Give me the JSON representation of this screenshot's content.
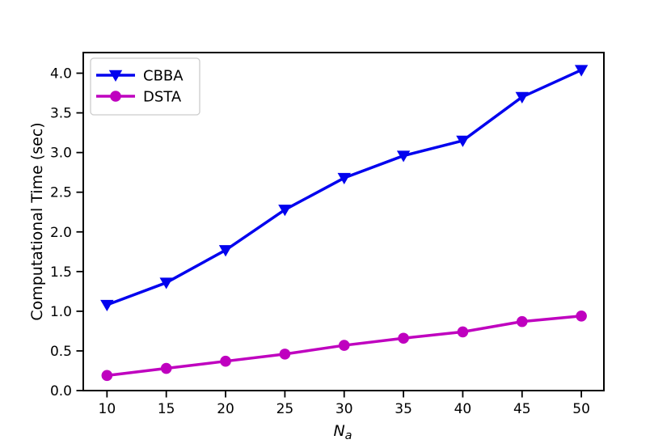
{
  "chart_data": {
    "type": "line",
    "title": "",
    "xlabel_main": "N",
    "xlabel_sub": "a",
    "ylabel": "Computational Time (sec)",
    "x": [
      10,
      15,
      20,
      25,
      30,
      35,
      40,
      45,
      50
    ],
    "series": [
      {
        "name": "CBBA",
        "color": "#0202EE",
        "marker": "triangle-down",
        "values": [
          1.08,
          1.36,
          1.77,
          2.28,
          2.68,
          2.96,
          3.15,
          3.7,
          4.04
        ]
      },
      {
        "name": "DSTA",
        "color": "#BF00BF",
        "marker": "circle",
        "values": [
          0.19,
          0.28,
          0.37,
          0.46,
          0.57,
          0.66,
          0.74,
          0.87,
          0.94
        ]
      }
    ],
    "xticks": [
      10,
      15,
      20,
      25,
      30,
      35,
      40,
      45,
      50
    ],
    "ytick_labels": [
      "0.0",
      "0.5",
      "1.0",
      "1.5",
      "2.0",
      "2.5",
      "3.0",
      "3.5",
      "4.0"
    ],
    "ytick_values": [
      0,
      0.5,
      1,
      1.5,
      2,
      2.5,
      3,
      3.5,
      4
    ],
    "xlim": [
      8,
      51.9
    ],
    "ylim": [
      0,
      4.26
    ],
    "grid": false,
    "legend_position": "upper-left",
    "frame_color": "#000000",
    "legend_border_color": "#cccccc"
  }
}
